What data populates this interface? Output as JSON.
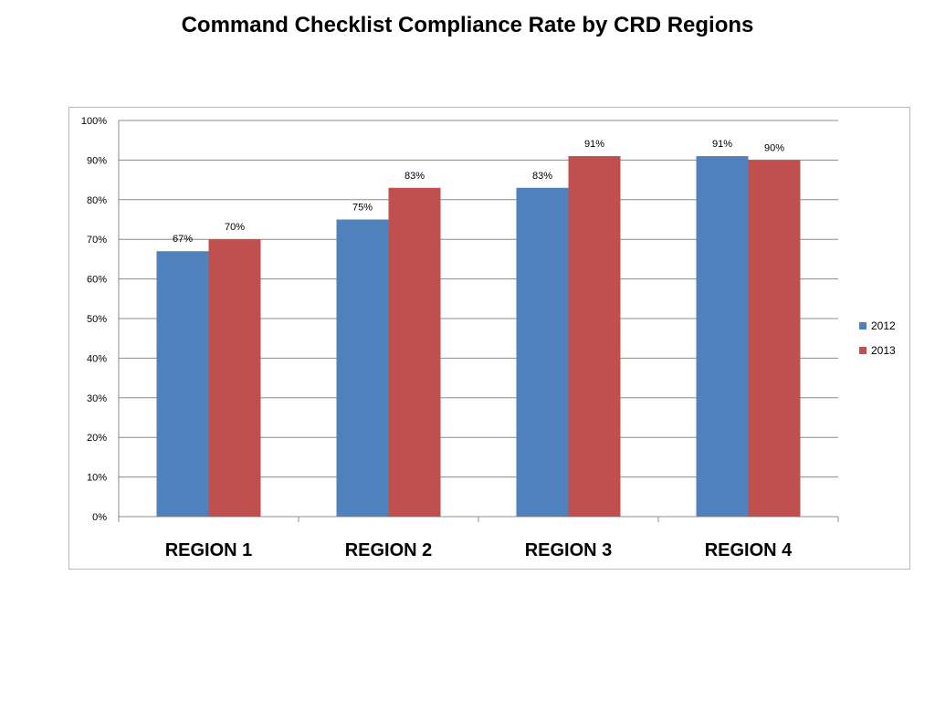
{
  "chart_data": {
    "type": "bar",
    "title": "Command Checklist Compliance Rate by CRD Regions",
    "categories": [
      "REGION 1",
      "REGION 2",
      "REGION 3",
      "REGION 4"
    ],
    "series": [
      {
        "name": "2012",
        "color": "#4f81bd",
        "values": [
          67,
          75,
          83,
          91
        ],
        "labels": [
          "67%",
          "75%",
          "83%",
          "91%"
        ]
      },
      {
        "name": "2013",
        "color": "#c0504d",
        "values": [
          70,
          83,
          91,
          90
        ],
        "labels": [
          "70%",
          "83%",
          "91%",
          "90%"
        ]
      }
    ],
    "xlabel": "",
    "ylabel": "",
    "ylim": [
      0,
      100
    ],
    "y_ticks": [
      0,
      10,
      20,
      30,
      40,
      50,
      60,
      70,
      80,
      90,
      100
    ],
    "y_tick_labels": [
      "0%",
      "10%",
      "20%",
      "30%",
      "40%",
      "50%",
      "60%",
      "70%",
      "80%",
      "90%",
      "100%"
    ],
    "grid": true,
    "legend_position": "right"
  }
}
